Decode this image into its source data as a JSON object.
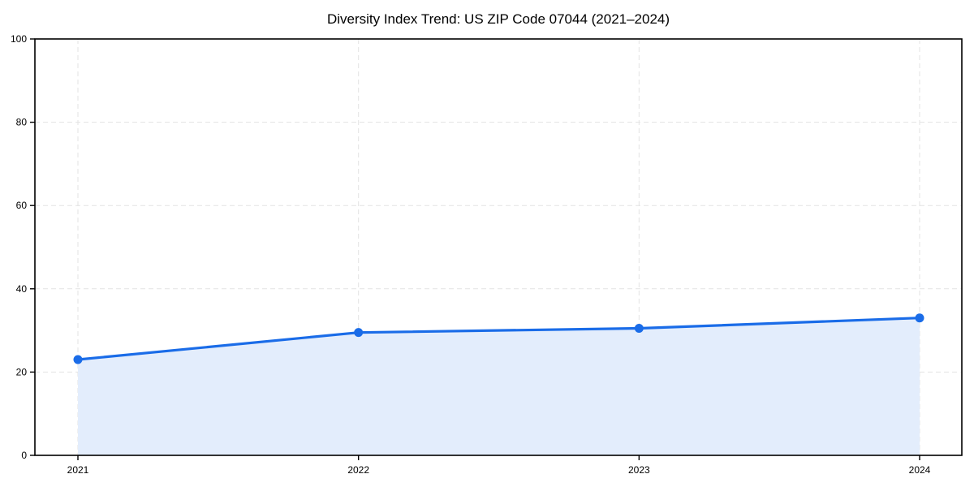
{
  "chart_data": {
    "type": "area",
    "title": "Diversity Index Trend: US ZIP Code 07044 (2021–2024)",
    "categories": [
      "2021",
      "2022",
      "2023",
      "2024"
    ],
    "series": [
      {
        "name": "Diversity Index",
        "values": [
          23,
          29.5,
          30.5,
          33
        ]
      }
    ],
    "xlabel": "",
    "ylabel": "",
    "ylim": [
      0,
      100
    ],
    "yticks": [
      0,
      20,
      40,
      60,
      80,
      100
    ],
    "grid": true,
    "grid_style": "dashed",
    "legend": "none",
    "marker": "circle",
    "colors": {
      "line": "#1a6ce8",
      "fill": "#e3edfc",
      "grid": "#e3e3e3",
      "axis": "#000000",
      "text": "#000000",
      "background": "#ffffff"
    }
  }
}
